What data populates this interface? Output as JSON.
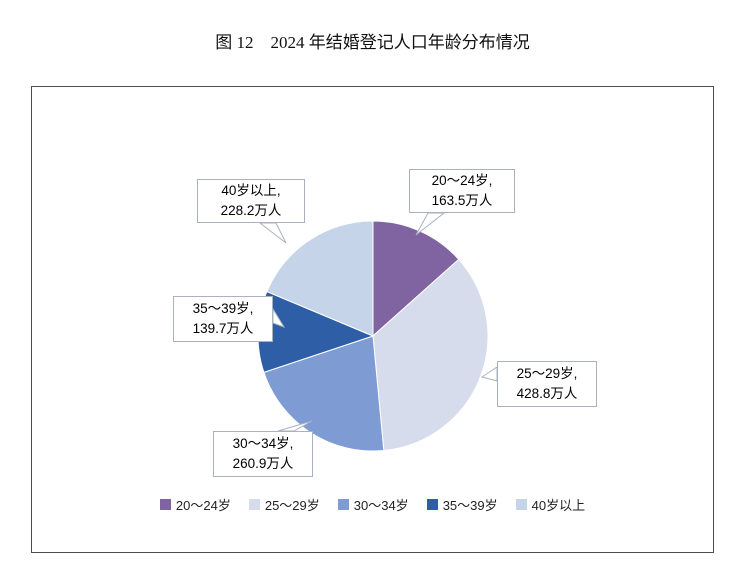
{
  "page": {
    "title": "图 12    2024 年结婚登记人口年龄分布情况"
  },
  "chart_data": {
    "type": "pie",
    "title": "图 12 2024 年结婚登记人口年龄分布情况",
    "unit": "万人",
    "categories": [
      "20～24岁",
      "25～29岁",
      "30～34岁",
      "35～39岁",
      "40岁以上"
    ],
    "values": [
      163.5,
      428.8,
      260.9,
      139.7,
      228.2
    ],
    "colors": [
      "#8064A2",
      "#D6DCEB",
      "#7E9CD3",
      "#2E5FA6",
      "#C6D4EA"
    ],
    "legend": [
      "20～24岁",
      "25～29岁",
      "30～34岁",
      "35～39岁",
      "40岁以上"
    ],
    "legend_position": "bottom",
    "start_angle": 0,
    "direction": "clockwise",
    "callouts": [
      {
        "line1": "20～24岁,",
        "line2": "163.5万人"
      },
      {
        "line1": "25～29岁,",
        "line2": "428.8万人"
      },
      {
        "line1": "30～34岁,",
        "line2": "260.9万人"
      },
      {
        "line1": "35～39岁,",
        "line2": "139.7万人"
      },
      {
        "line1": "40岁以上,",
        "line2": "228.2万人"
      }
    ]
  }
}
